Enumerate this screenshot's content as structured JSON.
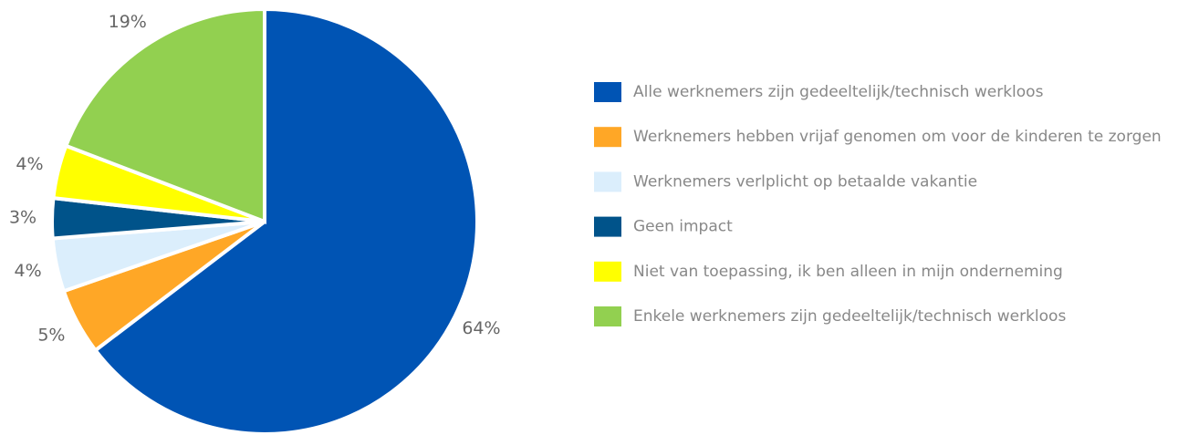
{
  "chart_data": {
    "type": "pie",
    "categories": [
      "Alle werknemers zijn gedeeltelijk/technisch werkloos",
      "Werknemers hebben vrijaf genomen om voor de kinderen te zorgen",
      "Werknemers verlplicht op betaalde vakantie",
      "Geen impact",
      "Niet van toepassing, ik ben alleen in mijn onderneming",
      "Enkele werknemers zijn gedeeltelijk/technisch werkloos"
    ],
    "values": [
      64,
      5,
      4,
      3,
      4,
      19
    ],
    "value_labels": [
      "64%",
      "5%",
      "4%",
      "3%",
      "4%",
      "19%"
    ],
    "colors": [
      "#0054b4",
      "#ffa726",
      "#dbeefc",
      "#00538a",
      "#ffff00",
      "#92d050"
    ],
    "legend": "right"
  }
}
